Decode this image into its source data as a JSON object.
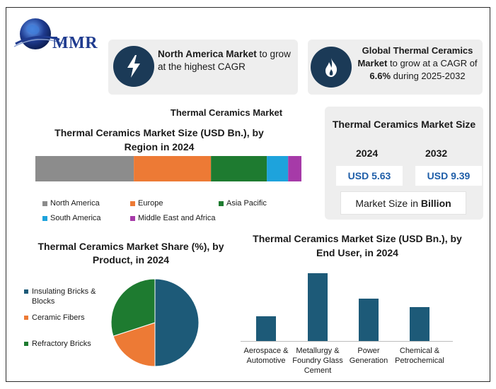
{
  "brand": {
    "logo_text": "MMR",
    "globe_color": "#1f3b8f"
  },
  "highlights": {
    "north_america": {
      "bold": "North America Market",
      "rest": " to grow at the highest CAGR",
      "icon": "lightning-icon"
    },
    "global": {
      "bold1": "Global Thermal Ceramics Market",
      "mid": " to grow at a CAGR of ",
      "bold2": "6.6%",
      "rest": " during 2025-2032",
      "icon": "flame-icon"
    }
  },
  "main_title": "Thermal Ceramics Market",
  "market_size": {
    "title": "Thermal Ceramics Market Size",
    "year1": "2024",
    "value1": "USD 5.63",
    "year2": "2032",
    "value2": "USD 9.39",
    "note_prefix": "Market Size in ",
    "note_bold": "Billion"
  },
  "chart_data": [
    {
      "type": "bar",
      "stacked": true,
      "orientation": "horizontal",
      "title": "Thermal Ceramics Market Size (USD Bn.), by Region in 2024",
      "series": [
        {
          "name": "North America",
          "value": 37,
          "color": "#8c8c8c"
        },
        {
          "name": "Europe",
          "value": 29,
          "color": "#ed7a35"
        },
        {
          "name": "Asia Pacific",
          "value": 21,
          "color": "#1e7b30"
        },
        {
          "name": "South America",
          "value": 8,
          "color": "#1ea3dc"
        },
        {
          "name": "Middle East and Africa",
          "value": 5,
          "color": "#a63aa8"
        }
      ]
    },
    {
      "type": "pie",
      "title": "Thermal Ceramics Market Share (%), by Product, in 2024",
      "slices": [
        {
          "name": "Insulating Bricks & Blocks",
          "value": 50,
          "color": "#1d5a78"
        },
        {
          "name": "Ceramic Fibers",
          "value": 20,
          "color": "#ed7a35"
        },
        {
          "name": "Refractory Bricks",
          "value": 30,
          "color": "#1e7b30"
        }
      ]
    },
    {
      "type": "bar",
      "title": "Thermal Ceramics Market Size (USD Bn.), by End User, in 2024",
      "categories": [
        "Aerospace & Automotive",
        "Metallurgy & Foundry Glass Cement",
        "Power Generation",
        "Chemical & Petrochemical"
      ],
      "values": [
        35,
        96,
        60,
        48
      ],
      "ylim": [
        0,
        100
      ],
      "color": "#1d5a78"
    }
  ]
}
